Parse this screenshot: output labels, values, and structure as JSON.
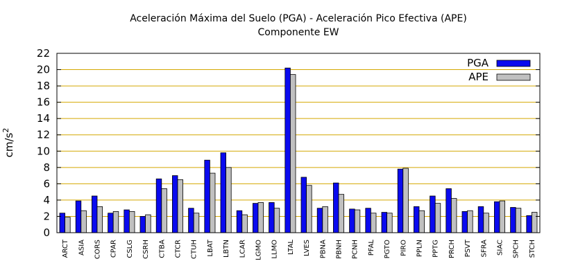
{
  "chart_data": {
    "type": "bar",
    "title": "Aceleración Máxima del Suelo (PGA) -  Aceleración Pico Efectiva (APE)",
    "subtitle": "Componente EW",
    "xlabel": "",
    "ylabel": "cm/s",
    "ylabel_superscript": "2",
    "ylim": [
      0,
      22
    ],
    "yticks": [
      "0",
      "2",
      "4",
      "6",
      "8",
      "10",
      "12",
      "14",
      "16",
      "18",
      "20",
      "22"
    ],
    "grid": "horizontal",
    "legend_position": "top-right",
    "categories": [
      "ARCT",
      "ASIA",
      "CORS",
      "CPAR",
      "CSLG",
      "CSRH",
      "CTBA",
      "CTCR",
      "CTUH",
      "LBAT",
      "LBTN",
      "LCAR",
      "LGMO",
      "LLMO",
      "LTAL",
      "LVES",
      "PBNA",
      "PBNH",
      "PCNH",
      "PFAL",
      "PGTO",
      "PIRO",
      "PPLN",
      "PPTG",
      "PRCH",
      "PSVT",
      "SFRA",
      "SIAC",
      "SPCH",
      "STCH"
    ],
    "series": [
      {
        "name": "PGA",
        "color": "#0a0aef",
        "values": [
          2.4,
          3.9,
          4.5,
          2.4,
          2.8,
          2.0,
          6.6,
          7.0,
          3.0,
          8.9,
          9.8,
          2.7,
          3.6,
          3.7,
          20.2,
          6.8,
          3.0,
          6.1,
          2.9,
          3.0,
          2.5,
          7.8,
          3.2,
          4.5,
          5.4,
          2.6,
          3.2,
          3.8,
          3.1,
          2.1
        ]
      },
      {
        "name": "APE",
        "color": "#c0c0c0",
        "values": [
          1.9,
          2.7,
          3.2,
          2.6,
          2.6,
          2.2,
          5.4,
          6.5,
          2.4,
          7.3,
          8.0,
          2.2,
          3.7,
          3.0,
          19.4,
          5.8,
          3.2,
          4.7,
          2.8,
          2.4,
          2.4,
          7.9,
          2.7,
          3.6,
          4.2,
          2.7,
          2.4,
          3.9,
          3.0,
          2.5
        ]
      }
    ]
  }
}
